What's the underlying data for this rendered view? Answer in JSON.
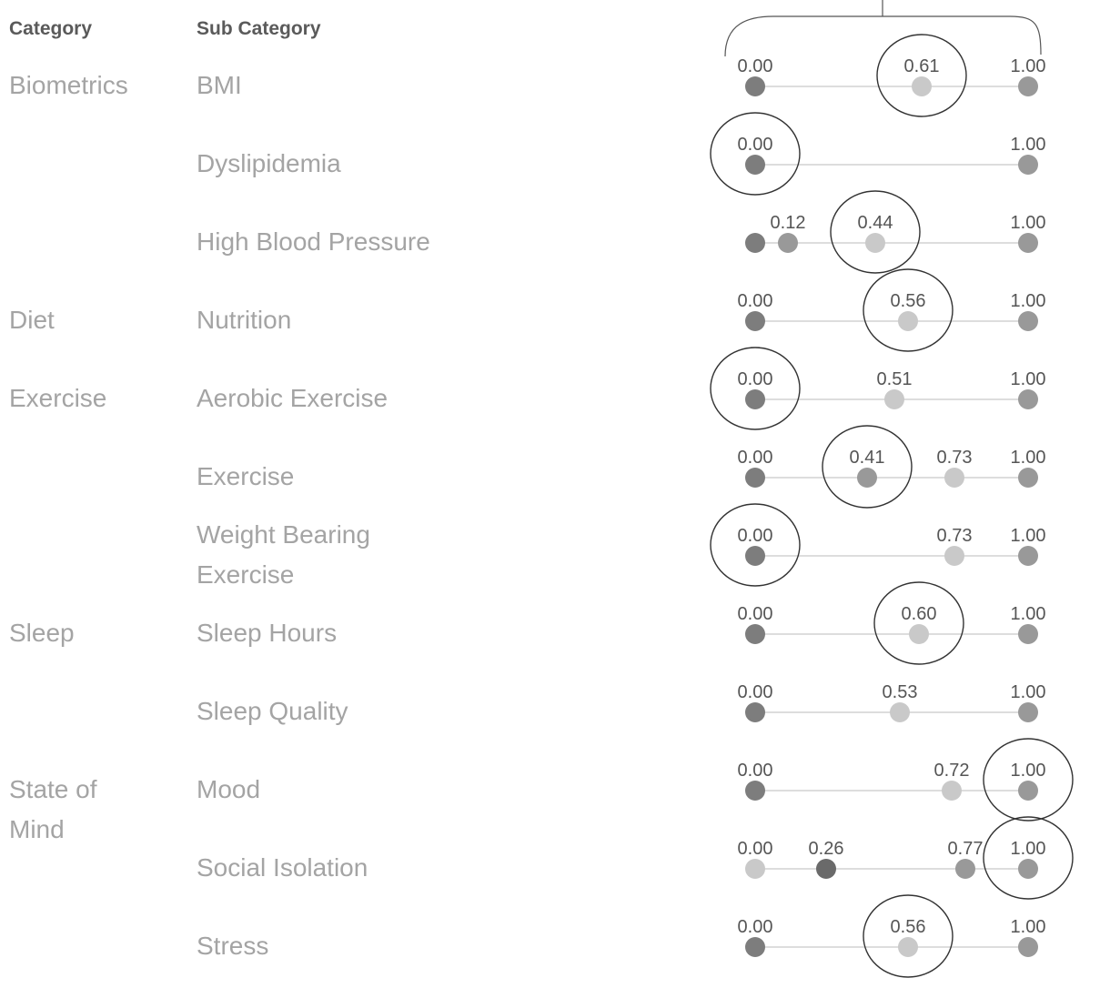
{
  "headers": {
    "category": "Category",
    "sub_category": "Sub Category"
  },
  "categories": [
    "Biometrics",
    "Diet",
    "Exercise",
    "Sleep",
    "State of Mind"
  ],
  "sub_categories": [
    "BMI",
    "Dyslipidemia",
    "High Blood Pressure",
    "Nutrition",
    "Aerobic Exercise",
    "Exercise",
    "Weight Bearing Exercise",
    "Sleep Hours",
    "Sleep Quality",
    "Mood",
    "Social Isolation",
    "Stress"
  ],
  "colors": {
    "dark_dot": "#7d7d7d",
    "mid_dot": "#999999",
    "light_dot": "#c9c9c9",
    "line": "#d2d2d2",
    "circle": "#333333",
    "label": "#555555"
  },
  "chart_data": {
    "type": "scatter",
    "xlim": [
      0,
      1
    ],
    "rows": [
      {
        "sub": "BMI",
        "points": [
          0.0,
          0.61,
          1.0
        ],
        "labels": [
          "0.00",
          "0.61",
          "1.00"
        ],
        "highlight": 0.61
      },
      {
        "sub": "Dyslipidemia",
        "points": [
          0.0,
          1.0
        ],
        "labels": [
          "0.00",
          "1.00"
        ],
        "highlight": 0.0
      },
      {
        "sub": "High Blood Pressure",
        "points": [
          0.0,
          0.12,
          0.44,
          1.0
        ],
        "labels": [
          "",
          "0.12",
          "0.44",
          "1.00"
        ],
        "highlight": 0.44
      },
      {
        "sub": "Nutrition",
        "points": [
          0.0,
          0.56,
          1.0
        ],
        "labels": [
          "0.00",
          "0.56",
          "1.00"
        ],
        "highlight": 0.56
      },
      {
        "sub": "Aerobic Exercise",
        "points": [
          0.0,
          0.51,
          1.0
        ],
        "labels": [
          "0.00",
          "0.51",
          "1.00"
        ],
        "highlight": 0.0
      },
      {
        "sub": "Exercise",
        "points": [
          0.0,
          0.41,
          0.73,
          1.0
        ],
        "labels": [
          "0.00",
          "0.41",
          "0.73",
          "1.00"
        ],
        "highlight": 0.41
      },
      {
        "sub": "Weight Bearing Exercise",
        "points": [
          0.0,
          0.73,
          1.0
        ],
        "labels": [
          "0.00",
          "0.73",
          "1.00"
        ],
        "highlight": 0.0
      },
      {
        "sub": "Sleep Hours",
        "points": [
          0.0,
          0.6,
          1.0
        ],
        "labels": [
          "0.00",
          "0.60",
          "1.00"
        ],
        "highlight": 0.6
      },
      {
        "sub": "Sleep Quality",
        "points": [
          0.0,
          0.53,
          1.0
        ],
        "labels": [
          "0.00",
          "0.53",
          "1.00"
        ],
        "highlight": null
      },
      {
        "sub": "Mood",
        "points": [
          0.0,
          0.72,
          1.0
        ],
        "labels": [
          "0.00",
          "0.72",
          "1.00"
        ],
        "highlight": 1.0
      },
      {
        "sub": "Social Isolation",
        "points": [
          0.0,
          0.26,
          0.77,
          1.0
        ],
        "labels": [
          "0.00",
          "0.26",
          "0.77",
          "1.00"
        ],
        "highlight": 1.0
      },
      {
        "sub": "Stress",
        "points": [
          0.0,
          0.56,
          1.0
        ],
        "labels": [
          "0.00",
          "0.56",
          "1.00"
        ],
        "highlight": 0.56
      }
    ]
  }
}
